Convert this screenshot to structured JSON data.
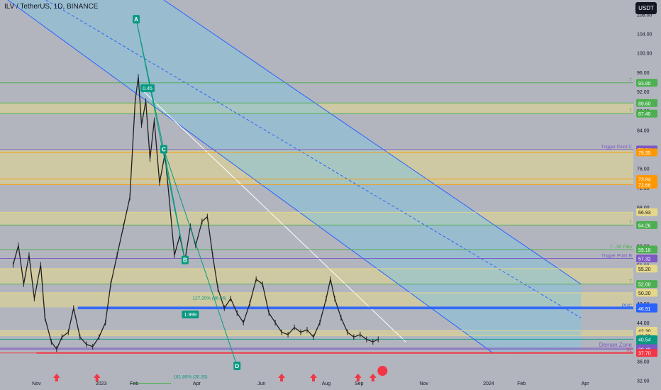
{
  "header": {
    "title": "ILV / TetherUS, 1D, BINANCE",
    "currency_button": "USDT"
  },
  "colors": {
    "background": "#b2b5be",
    "candle": "#1f1f1f",
    "channel_fill": "#7fc4e0",
    "channel_line": "#2962ff",
    "zone_fill": "#e6d88a",
    "support_line": "#f23645",
    "arrow": "#f23645",
    "wave_line": "#089981",
    "orange_line": "#ff9800",
    "purple_line": "#7e57c2",
    "green_line": "#4caf50"
  },
  "chart_data": {
    "type": "candlestick",
    "y_axis": {
      "min": 30,
      "max": 111,
      "scale": "linear",
      "position": "right",
      "ticks": [
        "108.00",
        "104.00",
        "100.00",
        "96.00",
        "92.00",
        "88.00",
        "84.00",
        "80.00",
        "76.00",
        "72.00",
        "68.00",
        "64.00",
        "60.00",
        "56.00",
        "52.00",
        "48.00",
        "44.00",
        "40.00",
        "36.00",
        "32.00"
      ]
    },
    "x_axis": {
      "ticks": [
        "Nov",
        "2023",
        "Feb",
        "Apr",
        "Jun",
        "Aug",
        "Sep",
        "Nov",
        "2024",
        "Feb",
        "Apr"
      ]
    },
    "price_series": [
      [
        "2022-10-10",
        56
      ],
      [
        "2022-10-15",
        60
      ],
      [
        "2022-10-20",
        52
      ],
      [
        "2022-10-25",
        58
      ],
      [
        "2022-10-30",
        49
      ],
      [
        "2022-11-05",
        56
      ],
      [
        "2022-11-09",
        45
      ],
      [
        "2022-11-15",
        40
      ],
      [
        "2022-11-20",
        38.5
      ],
      [
        "2022-11-25",
        41
      ],
      [
        "2022-12-01",
        42
      ],
      [
        "2022-12-06",
        47
      ],
      [
        "2022-12-12",
        41
      ],
      [
        "2022-12-18",
        39.5
      ],
      [
        "2022-12-24",
        39
      ],
      [
        "2022-12-30",
        41
      ],
      [
        "2023-01-05",
        44
      ],
      [
        "2023-01-10",
        52
      ],
      [
        "2023-01-16",
        58
      ],
      [
        "2023-01-22",
        64
      ],
      [
        "2023-01-28",
        70
      ],
      [
        "2023-02-02",
        90
      ],
      [
        "2023-02-05",
        95
      ],
      [
        "2023-02-08",
        85
      ],
      [
        "2023-02-12",
        90
      ],
      [
        "2023-02-16",
        78
      ],
      [
        "2023-02-20",
        86
      ],
      [
        "2023-02-25",
        73
      ],
      [
        "2023-03-02",
        79
      ],
      [
        "2023-03-06",
        70
      ],
      [
        "2023-03-11",
        58
      ],
      [
        "2023-03-16",
        62
      ],
      [
        "2023-03-21",
        57
      ],
      [
        "2023-03-26",
        64
      ],
      [
        "2023-03-31",
        60
      ],
      [
        "2023-04-06",
        65
      ],
      [
        "2023-04-11",
        66
      ],
      [
        "2023-04-16",
        58
      ],
      [
        "2023-04-21",
        51
      ],
      [
        "2023-04-27",
        47
      ],
      [
        "2023-05-03",
        49
      ],
      [
        "2023-05-09",
        46
      ],
      [
        "2023-05-15",
        44
      ],
      [
        "2023-05-21",
        48
      ],
      [
        "2023-05-27",
        53
      ],
      [
        "2023-06-02",
        52
      ],
      [
        "2023-06-08",
        46
      ],
      [
        "2023-06-14",
        44
      ],
      [
        "2023-06-20",
        42
      ],
      [
        "2023-06-26",
        41.5
      ],
      [
        "2023-07-02",
        43
      ],
      [
        "2023-07-08",
        42
      ],
      [
        "2023-07-14",
        42.5
      ],
      [
        "2023-07-20",
        41
      ],
      [
        "2023-07-26",
        44
      ],
      [
        "2023-08-01",
        49
      ],
      [
        "2023-08-05",
        53
      ],
      [
        "2023-08-09",
        49
      ],
      [
        "2023-08-15",
        45
      ],
      [
        "2023-08-21",
        42
      ],
      [
        "2023-08-27",
        41
      ],
      [
        "2023-09-02",
        41.5
      ],
      [
        "2023-09-08",
        40.5
      ],
      [
        "2023-09-14",
        40
      ],
      [
        "2023-09-19",
        40.54
      ]
    ],
    "horizontal_levels": [
      {
        "price": 93.8,
        "label": "93.80",
        "color": "#4caf50"
      },
      {
        "price": 89.6,
        "label": "89.60",
        "color": "#4caf50"
      },
      {
        "price": 87.4,
        "label": "87.40",
        "color": "#4caf50"
      },
      {
        "price": 79.94,
        "label": "79.94",
        "color": "#7e57c2",
        "text": "Trigger Point C"
      },
      {
        "price": 79.35,
        "label": "79.35",
        "color": "#ff9800"
      },
      {
        "price": 73.84,
        "label": "73.84",
        "color": "#ff9800"
      },
      {
        "price": 72.66,
        "label": "72.66",
        "color": "#ff9800"
      },
      {
        "price": 66.93,
        "label": "66.93",
        "color": "#e6d88a"
      },
      {
        "price": 64.26,
        "label": "64.26",
        "color": "#4caf50"
      },
      {
        "price": 59.18,
        "label": "59.18",
        "color": "#4caf50",
        "text": "T - 50 Fibo"
      },
      {
        "price": 57.32,
        "label": "57.32",
        "color": "#7e57c2",
        "text": "Trigger Point B"
      },
      {
        "price": 55.2,
        "label": "55.20",
        "color": "#e6d88a"
      },
      {
        "price": 52.0,
        "label": "52.00",
        "color": "#4caf50"
      },
      {
        "price": 50.2,
        "label": "50.20",
        "color": "#e6d88a"
      },
      {
        "price": 47.18,
        "label": "47.18",
        "color": "#2962ff"
      },
      {
        "price": 46.91,
        "label": "46.91",
        "color": "#2962ff",
        "text": "POC"
      },
      {
        "price": 42.3,
        "label": "42.30",
        "color": "#e6d88a"
      },
      {
        "price": 41.3,
        "label": "41.30",
        "color": "#e6d88a"
      },
      {
        "price": 40.54,
        "label": "40.54",
        "color": "#089981",
        "sub": "13:15:30"
      },
      {
        "price": 38.69,
        "label": "38.69",
        "color": "#7e57c2"
      },
      {
        "price": 38.48,
        "label": "38.48",
        "color": "#7e57c2"
      },
      {
        "price": 37.7,
        "label": "37.70",
        "color": "#f23645",
        "text": "SL"
      }
    ],
    "zones": [
      {
        "top": 89.6,
        "bottom": 87.4
      },
      {
        "top": 79.94,
        "bottom": 72.66
      },
      {
        "top": 66.93,
        "bottom": 64.26
      },
      {
        "top": 55.2,
        "bottom": 52.0
      },
      {
        "top": 50.2,
        "bottom": 47.18
      },
      {
        "top": 42.3,
        "bottom": 41.3
      }
    ],
    "wave_points": [
      {
        "label": "A",
        "date": "2023-02-03",
        "price": 107
      },
      {
        "label": "B",
        "date": "2023-03-21",
        "price": 57
      },
      {
        "label": "C",
        "date": "2023-03-01",
        "price": 80
      },
      {
        "label": "D",
        "date": "2023-05-09",
        "price": 35
      }
    ],
    "annotations": {
      "ratio_1": "0.45",
      "ratio_2": "1.999",
      "fib_127": "127.20% (46.86)",
      "fib_161": "161.80% (30.35)",
      "demand_zone": "Deman Zone",
      "level_notes": {
        "c_label": "Trigger Point C",
        "b_label": "Trigger Point B",
        "fibo_label": "T - 50 Fibo",
        "poc_label": "POC",
        "sl_label": "SL",
        "t_label": "T"
      }
    },
    "arrows_dates": [
      "2022-11-20",
      "2022-12-28",
      "2023-06-20",
      "2023-07-20",
      "2023-08-31",
      "2023-09-14"
    ]
  }
}
